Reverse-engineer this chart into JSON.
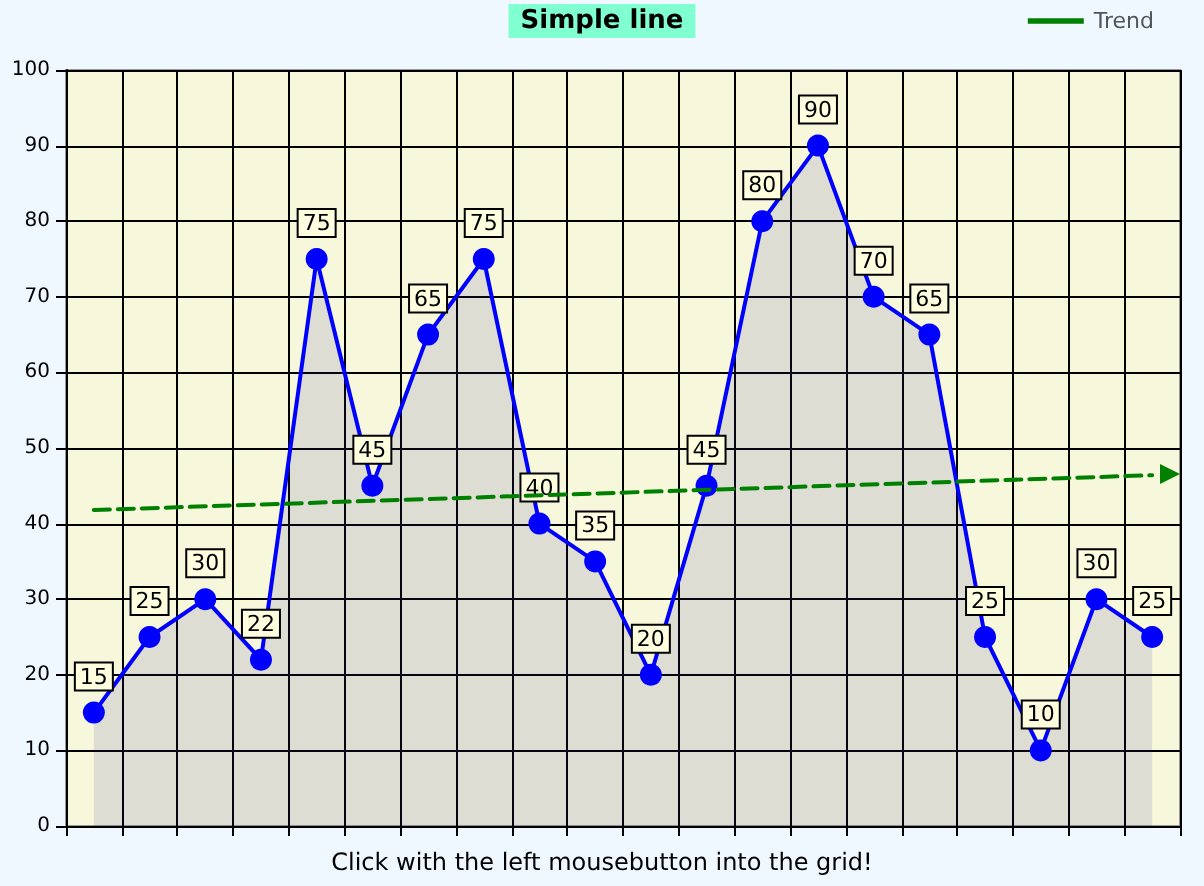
{
  "chart_data": {
    "type": "area",
    "title": "Simple line",
    "annotations": [
      "Click with the left mousebutton into the grid!"
    ],
    "categories": [
      null,
      null,
      null,
      null,
      null,
      null,
      null,
      null,
      null,
      null,
      null,
      null,
      null,
      null,
      null,
      null,
      null,
      null,
      null,
      null
    ],
    "ylim": [
      0,
      100
    ],
    "yticks": [
      0,
      10,
      20,
      30,
      40,
      50,
      60,
      70,
      80,
      90,
      100
    ],
    "series": [
      {
        "color": "#0000ff",
        "values": [
          15,
          25,
          30,
          22,
          75,
          45,
          65,
          75,
          40,
          35,
          20,
          45,
          80,
          90,
          70,
          65,
          25,
          10,
          30,
          25
        ],
        "value_labels": [
          "15",
          "25",
          "30",
          "22",
          "75",
          "45",
          "65",
          "75",
          "40",
          "35",
          "20",
          "45",
          "80",
          "90",
          "70",
          "65",
          "25",
          "10",
          "30",
          "25"
        ]
      },
      {
        "name": "Trend",
        "type": "line",
        "color": "#008000",
        "line_style": "dashed",
        "marker": "none",
        "values": [
          41.8,
          null,
          null,
          null,
          null,
          null,
          null,
          null,
          null,
          null,
          null,
          null,
          null,
          null,
          null,
          null,
          null,
          null,
          null,
          46.4
        ]
      }
    ],
    "marker": "circle",
    "grid": true,
    "legend": "top right",
    "tick_labels": "y"
  }
}
